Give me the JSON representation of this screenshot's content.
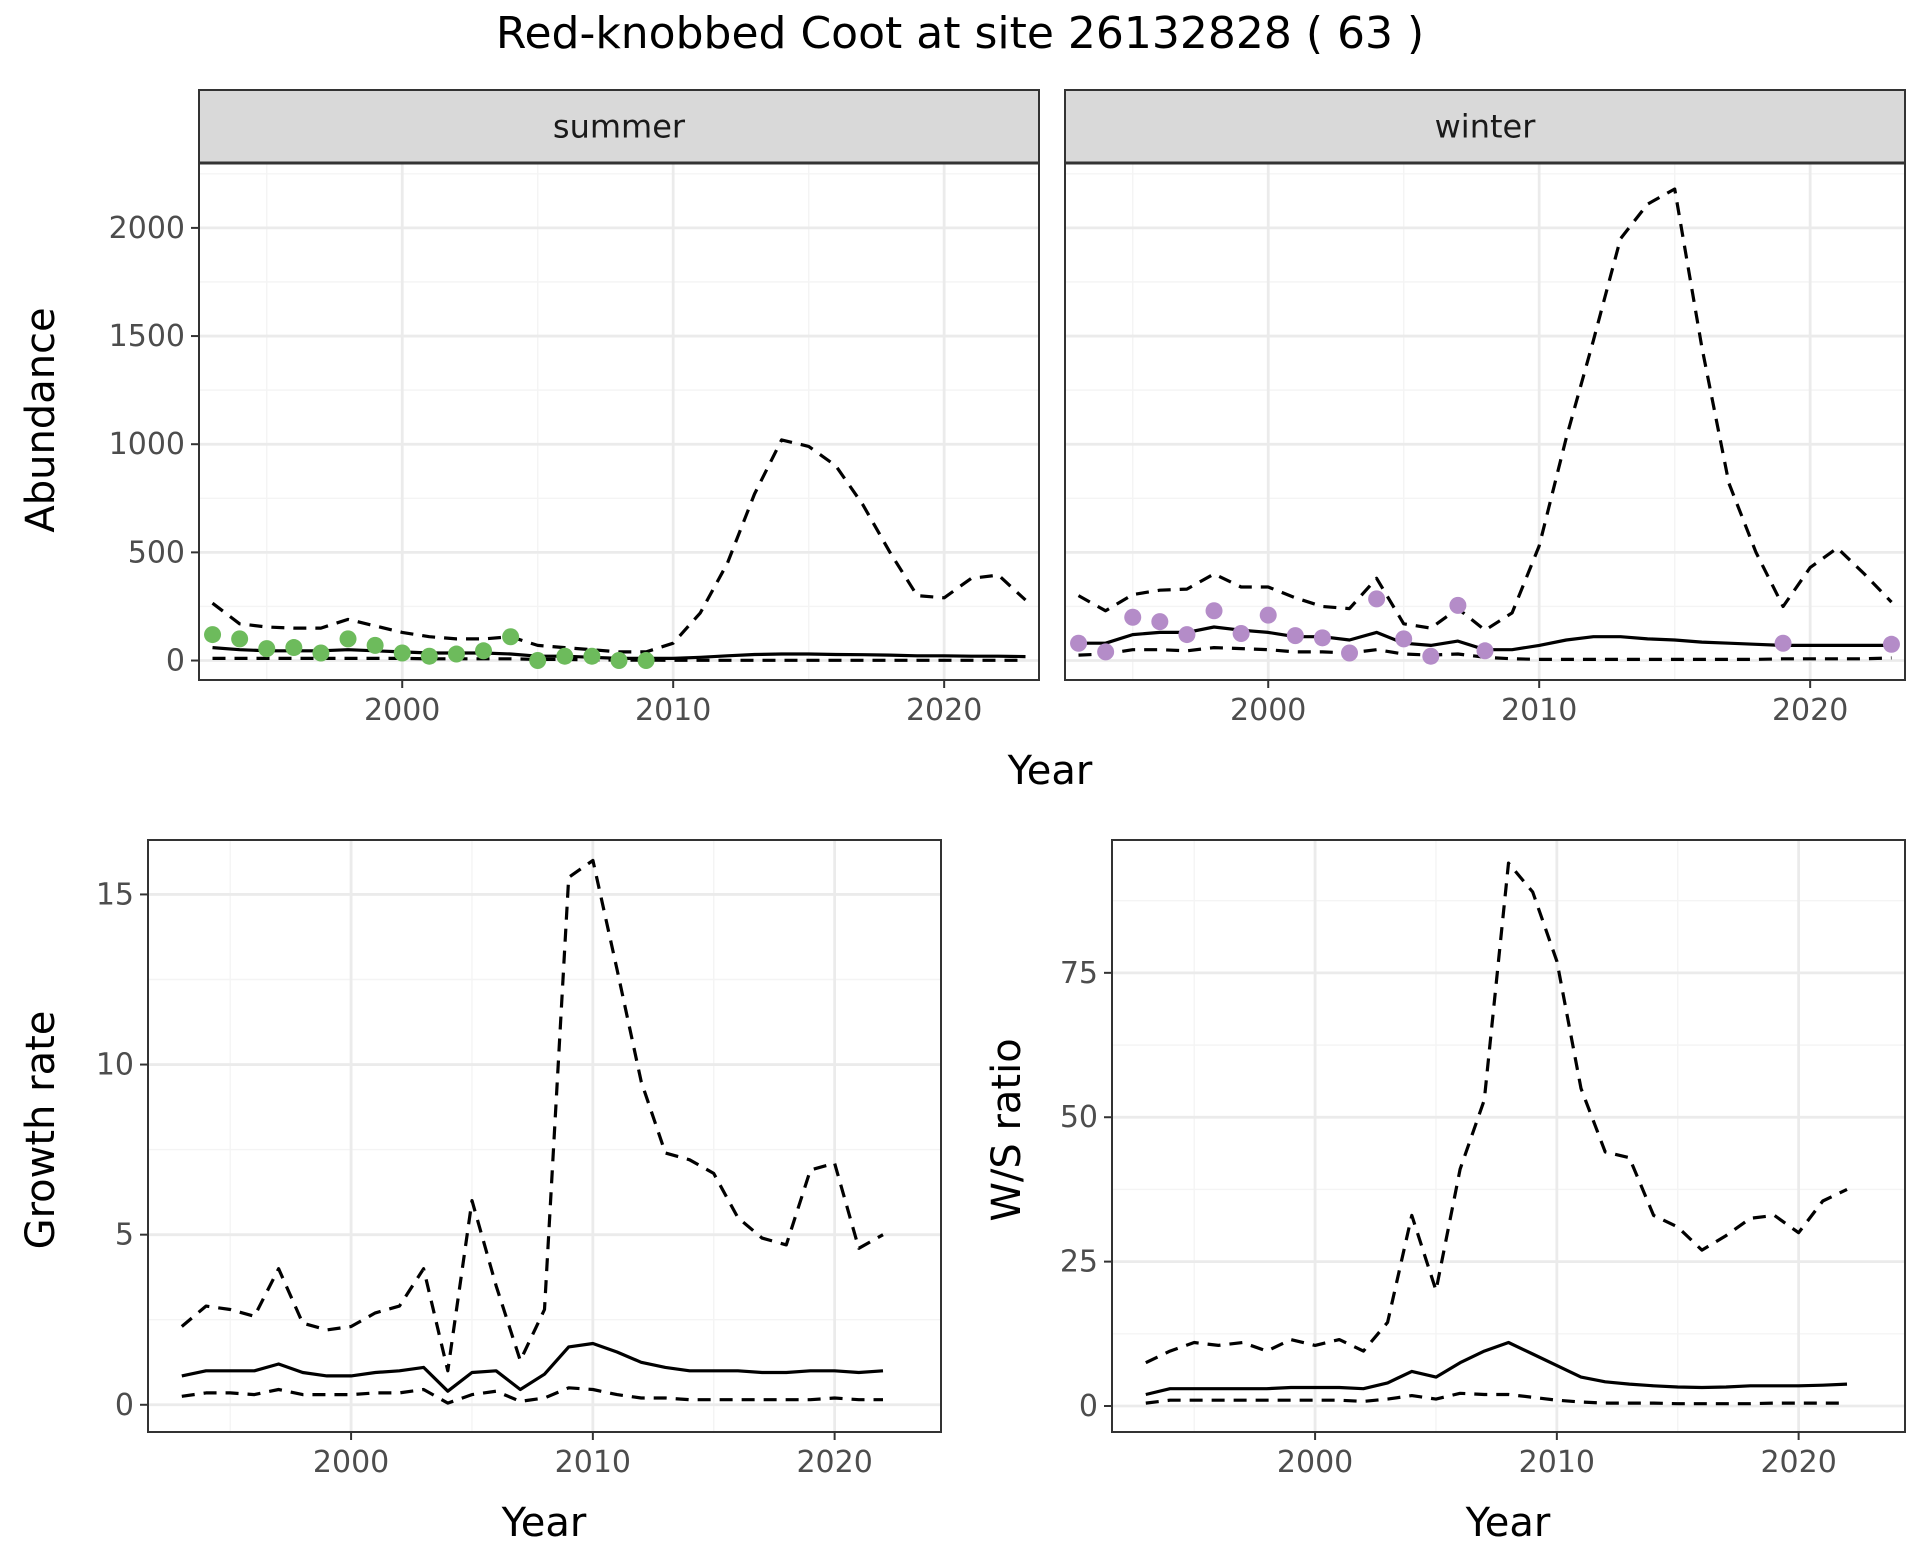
{
  "title": "Red-knobbed Coot at site 26132828 ( 63 )",
  "colors": {
    "summer_points": "#6dbb5c",
    "winter_points": "#b48cc8",
    "strip_fill": "#d9d9d9",
    "strip_border": "#333333",
    "grid_major": "#ebebeb",
    "grid_minor": "#f4f4f4",
    "line": "#000000",
    "axis_text": "#4d4d4d"
  },
  "chart_data": [
    {
      "type": "line",
      "panel": "summer",
      "strip_label": "summer",
      "ylabel": "Abundance",
      "xlabel": "Year",
      "xlim": [
        1992.5,
        2023.5
      ],
      "ylim": [
        -90,
        2300
      ],
      "x_ticks": [
        2000,
        2010,
        2020
      ],
      "y_ticks": [
        0,
        500,
        1000,
        1500,
        2000
      ],
      "series": [
        {
          "role": "estimate",
          "style": "solid",
          "x": [
            1993,
            1994,
            1995,
            1996,
            1997,
            1998,
            1999,
            2000,
            2001,
            2002,
            2003,
            2004,
            2005,
            2006,
            2007,
            2008,
            2009,
            2010,
            2011,
            2012,
            2013,
            2014,
            2015,
            2016,
            2017,
            2018,
            2019,
            2020,
            2021,
            2022,
            2023
          ],
          "y": [
            60,
            50,
            45,
            45,
            45,
            50,
            45,
            40,
            35,
            35,
            35,
            30,
            20,
            20,
            15,
            10,
            10,
            10,
            15,
            22,
            28,
            30,
            30,
            28,
            27,
            25,
            22,
            22,
            20,
            20,
            18
          ]
        },
        {
          "role": "upper",
          "style": "dashed",
          "x": [
            1993,
            1994,
            1995,
            1996,
            1997,
            1998,
            1999,
            2000,
            2001,
            2002,
            2003,
            2004,
            2005,
            2006,
            2007,
            2008,
            2009,
            2010,
            2011,
            2012,
            2013,
            2014,
            2015,
            2016,
            2017,
            2018,
            2019,
            2020,
            2021,
            2022,
            2023
          ],
          "y": [
            265,
            170,
            155,
            150,
            150,
            190,
            160,
            130,
            110,
            100,
            100,
            110,
            70,
            60,
            50,
            40,
            40,
            80,
            220,
            450,
            770,
            1020,
            990,
            900,
            720,
            500,
            300,
            290,
            380,
            395,
            280
          ]
        },
        {
          "role": "lower",
          "style": "dashed",
          "x": [
            1993,
            1994,
            1995,
            1996,
            1997,
            1998,
            1999,
            2000,
            2001,
            2002,
            2003,
            2004,
            2005,
            2006,
            2007,
            2008,
            2009,
            2010,
            2011,
            2012,
            2013,
            2014,
            2015,
            2016,
            2017,
            2018,
            2019,
            2020,
            2021,
            2022,
            2023
          ],
          "y": [
            10,
            10,
            10,
            10,
            10,
            10,
            10,
            10,
            8,
            8,
            8,
            8,
            5,
            5,
            3,
            2,
            2,
            1,
            1,
            1,
            1,
            1,
            1,
            1,
            1,
            1,
            1,
            1,
            1,
            1,
            1
          ]
        }
      ],
      "points": {
        "x": [
          1993,
          1994,
          1995,
          1996,
          1997,
          1998,
          1999,
          2000,
          2001,
          2002,
          2003,
          2004,
          2005,
          2006,
          2007,
          2008,
          2009
        ],
        "y": [
          120,
          100,
          55,
          60,
          35,
          100,
          70,
          35,
          20,
          30,
          45,
          110,
          0,
          20,
          20,
          0,
          0
        ]
      }
    },
    {
      "type": "line",
      "panel": "winter",
      "strip_label": "winter",
      "ylabel": "",
      "xlabel": "Year",
      "xlim": [
        1992.5,
        2023.5
      ],
      "ylim": [
        -90,
        2300
      ],
      "x_ticks": [
        2000,
        2010,
        2020
      ],
      "y_ticks": [
        0,
        500,
        1000,
        1500,
        2000
      ],
      "series": [
        {
          "role": "estimate",
          "style": "solid",
          "x": [
            1993,
            1994,
            1995,
            1996,
            1997,
            1998,
            1999,
            2000,
            2001,
            2002,
            2003,
            2004,
            2005,
            2006,
            2007,
            2008,
            2009,
            2010,
            2011,
            2012,
            2013,
            2014,
            2015,
            2016,
            2017,
            2018,
            2019,
            2020,
            2021,
            2022,
            2023
          ],
          "y": [
            80,
            80,
            120,
            130,
            130,
            155,
            140,
            130,
            110,
            110,
            95,
            130,
            80,
            70,
            90,
            50,
            50,
            70,
            95,
            110,
            110,
            100,
            95,
            85,
            80,
            75,
            70,
            70,
            70,
            70,
            70
          ]
        },
        {
          "role": "upper",
          "style": "dashed",
          "x": [
            1993,
            1994,
            1995,
            1996,
            1997,
            1998,
            1999,
            2000,
            2001,
            2002,
            2003,
            2004,
            2005,
            2006,
            2007,
            2008,
            2009,
            2010,
            2011,
            2012,
            2013,
            2014,
            2015,
            2016,
            2017,
            2018,
            2019,
            2020,
            2021,
            2022,
            2023
          ],
          "y": [
            300,
            230,
            305,
            325,
            330,
            400,
            340,
            340,
            290,
            250,
            240,
            380,
            170,
            150,
            240,
            140,
            220,
            530,
            1030,
            1480,
            1950,
            2110,
            2180,
            1450,
            820,
            500,
            250,
            430,
            520,
            400,
            270
          ]
        },
        {
          "role": "lower",
          "style": "dashed",
          "x": [
            1993,
            1994,
            1995,
            1996,
            1997,
            1998,
            1999,
            2000,
            2001,
            2002,
            2003,
            2004,
            2005,
            2006,
            2007,
            2008,
            2009,
            2010,
            2011,
            2012,
            2013,
            2014,
            2015,
            2016,
            2017,
            2018,
            2019,
            2020,
            2021,
            2022,
            2023
          ],
          "y": [
            25,
            30,
            50,
            50,
            45,
            60,
            55,
            50,
            40,
            40,
            35,
            50,
            30,
            25,
            30,
            15,
            8,
            5,
            5,
            5,
            5,
            5,
            5,
            5,
            5,
            5,
            8,
            8,
            8,
            8,
            12
          ]
        }
      ],
      "points": {
        "x": [
          1993,
          1994,
          1995,
          1996,
          1997,
          1998,
          1999,
          2000,
          2001,
          2002,
          2003,
          2004,
          2005,
          2006,
          2007,
          2008,
          2019,
          2023
        ],
        "y": [
          80,
          40,
          200,
          180,
          120,
          230,
          125,
          210,
          115,
          105,
          35,
          285,
          100,
          20,
          255,
          45,
          80,
          75
        ]
      }
    },
    {
      "type": "line",
      "panel": "growth",
      "ylabel": "Growth rate",
      "xlabel": "Year",
      "xlim": [
        1991.6,
        2024.4
      ],
      "ylim": [
        -0.8,
        16.6
      ],
      "x_ticks": [
        2000,
        2010,
        2020
      ],
      "y_ticks": [
        0,
        5,
        10,
        15
      ],
      "series": [
        {
          "role": "estimate",
          "style": "solid",
          "x": [
            1993,
            1994,
            1995,
            1996,
            1997,
            1998,
            1999,
            2000,
            2001,
            2002,
            2003,
            2004,
            2005,
            2006,
            2007,
            2008,
            2009,
            2010,
            2011,
            2012,
            2013,
            2014,
            2015,
            2016,
            2017,
            2018,
            2019,
            2020,
            2021,
            2022
          ],
          "y": [
            0.85,
            1.0,
            1.0,
            1.0,
            1.2,
            0.95,
            0.85,
            0.85,
            0.95,
            1.0,
            1.1,
            0.4,
            0.95,
            1.0,
            0.45,
            0.9,
            1.7,
            1.8,
            1.55,
            1.25,
            1.1,
            1.0,
            1.0,
            1.0,
            0.95,
            0.95,
            1.0,
            1.0,
            0.95,
            1.0
          ]
        },
        {
          "role": "upper",
          "style": "dashed",
          "x": [
            1993,
            1994,
            1995,
            1996,
            1997,
            1998,
            1999,
            2000,
            2001,
            2002,
            2003,
            2004,
            2005,
            2006,
            2007,
            2008,
            2009,
            2010,
            2011,
            2012,
            2013,
            2014,
            2015,
            2016,
            2017,
            2018,
            2019,
            2020,
            2021,
            2022
          ],
          "y": [
            2.3,
            2.9,
            2.8,
            2.6,
            4.0,
            2.4,
            2.2,
            2.3,
            2.7,
            2.9,
            4.0,
            1.0,
            6.0,
            3.5,
            1.3,
            2.8,
            15.5,
            16.0,
            12.8,
            9.5,
            7.4,
            7.2,
            6.8,
            5.5,
            4.9,
            4.7,
            6.9,
            7.1,
            4.6,
            5.0
          ]
        },
        {
          "role": "lower",
          "style": "dashed",
          "x": [
            1993,
            1994,
            1995,
            1996,
            1997,
            1998,
            1999,
            2000,
            2001,
            2002,
            2003,
            2004,
            2005,
            2006,
            2007,
            2008,
            2009,
            2010,
            2011,
            2012,
            2013,
            2014,
            2015,
            2016,
            2017,
            2018,
            2019,
            2020,
            2021,
            2022
          ],
          "y": [
            0.25,
            0.35,
            0.35,
            0.3,
            0.45,
            0.3,
            0.3,
            0.3,
            0.35,
            0.35,
            0.45,
            0.05,
            0.3,
            0.4,
            0.1,
            0.2,
            0.5,
            0.45,
            0.3,
            0.2,
            0.2,
            0.15,
            0.15,
            0.15,
            0.15,
            0.15,
            0.15,
            0.2,
            0.15,
            0.15
          ]
        }
      ]
    },
    {
      "type": "line",
      "panel": "ws_ratio",
      "ylabel": "W/S ratio",
      "xlabel": "Year",
      "xlim": [
        1991.6,
        2024.4
      ],
      "ylim": [
        -4.5,
        98
      ],
      "x_ticks": [
        2000,
        2010,
        2020
      ],
      "y_ticks": [
        0,
        25,
        50,
        75
      ],
      "series": [
        {
          "role": "estimate",
          "style": "solid",
          "x": [
            1993,
            1994,
            1995,
            1996,
            1997,
            1998,
            1999,
            2000,
            2001,
            2002,
            2003,
            2004,
            2005,
            2006,
            2007,
            2008,
            2009,
            2010,
            2011,
            2012,
            2013,
            2014,
            2015,
            2016,
            2017,
            2018,
            2019,
            2020,
            2021,
            2022
          ],
          "y": [
            2,
            3,
            3,
            3,
            3,
            3,
            3.2,
            3.2,
            3.2,
            3,
            4,
            6,
            5,
            7.5,
            9.5,
            11,
            9,
            7,
            5,
            4.2,
            3.8,
            3.5,
            3.3,
            3.2,
            3.3,
            3.5,
            3.5,
            3.5,
            3.6,
            3.8
          ]
        },
        {
          "role": "upper",
          "style": "dashed",
          "x": [
            1993,
            1994,
            1995,
            1996,
            1997,
            1998,
            1999,
            2000,
            2001,
            2002,
            2003,
            2004,
            2005,
            2006,
            2007,
            2008,
            2009,
            2010,
            2011,
            2012,
            2013,
            2014,
            2015,
            2016,
            2017,
            2018,
            2019,
            2020,
            2021,
            2022
          ],
          "y": [
            7.5,
            9.5,
            11,
            10.5,
            11,
            9.5,
            11.5,
            10.5,
            11.5,
            9.5,
            14.5,
            33,
            20,
            41,
            53,
            94,
            89,
            77,
            55,
            44,
            43,
            33,
            31,
            27,
            29.5,
            32.5,
            33,
            30,
            35.5,
            37.5
          ]
        },
        {
          "role": "lower",
          "style": "dashed",
          "x": [
            1993,
            1994,
            1995,
            1996,
            1997,
            1998,
            1999,
            2000,
            2001,
            2002,
            2003,
            2004,
            2005,
            2006,
            2007,
            2008,
            2009,
            2010,
            2011,
            2012,
            2013,
            2014,
            2015,
            2016,
            2017,
            2018,
            2019,
            2020,
            2021,
            2022
          ],
          "y": [
            0.5,
            1,
            1,
            1,
            1,
            1,
            1,
            1,
            1,
            0.8,
            1.2,
            1.8,
            1.2,
            2.2,
            2,
            2,
            1.5,
            1,
            0.7,
            0.5,
            0.5,
            0.5,
            0.4,
            0.4,
            0.4,
            0.4,
            0.5,
            0.5,
            0.5,
            0.5
          ]
        }
      ]
    }
  ]
}
